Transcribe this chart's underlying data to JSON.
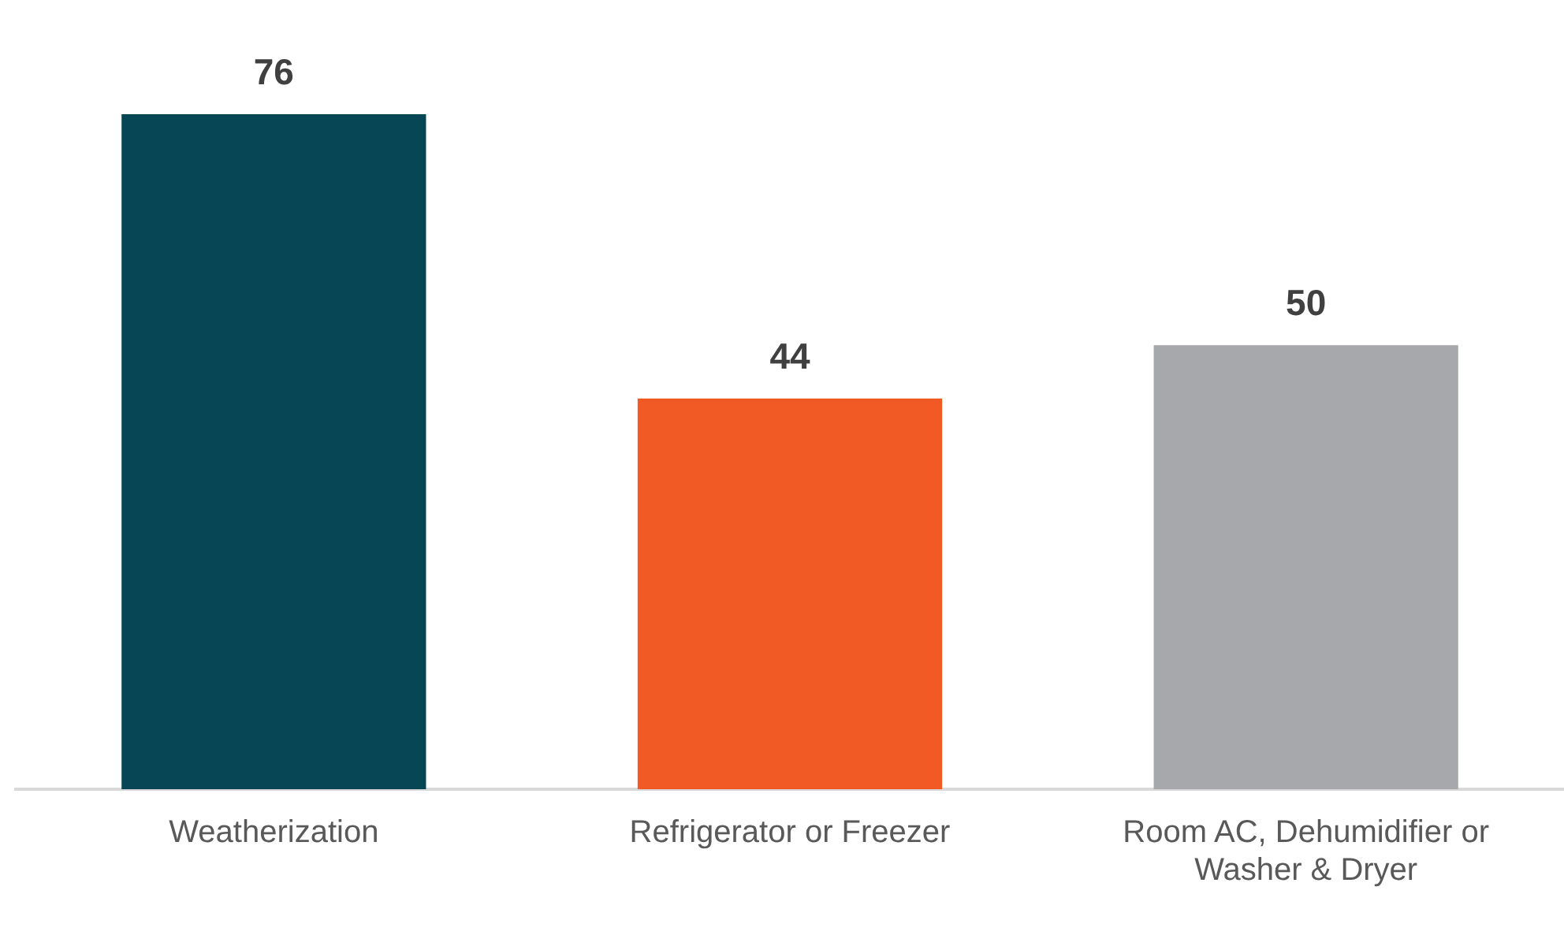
{
  "chart_data": {
    "type": "bar",
    "categories": [
      "Weatherization",
      "Refrigerator or Freezer",
      "Room AC, Dehumidifier or Washer & Dryer"
    ],
    "values": [
      76,
      44,
      50
    ],
    "colors": [
      "#074654",
      "#f15a24",
      "#a6a8ab"
    ],
    "data_labels": true,
    "grid": false,
    "legend": false
  }
}
